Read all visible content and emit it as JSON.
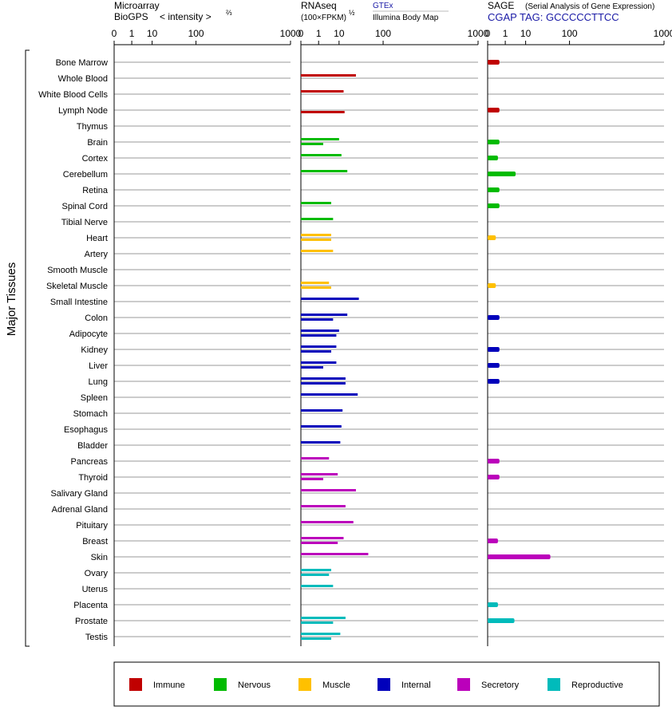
{
  "panels": {
    "microarray": {
      "title_line1": "Microarray",
      "title_line2": "BioGPS",
      "intensity_label": "< intensity >",
      "exponent": "⅔"
    },
    "rnaseq": {
      "title": "RNAseq",
      "unit": "(100×FPKM)",
      "exponent": "½",
      "gtex": "GTEx",
      "illumina": "Illumina Body Map"
    },
    "sage": {
      "title": "SAGE",
      "subtitle": "(Serial Analysis of Gene Expression)",
      "tag": "CGAP TAG: GCCCCCTTCC"
    }
  },
  "side_label": "Major Tissues",
  "colors": {
    "Immune": "#c00000",
    "Nervous": "#00bb00",
    "Muscle": "#ffc000",
    "Internal": "#0000bb",
    "Secretory": "#bb00bb",
    "Reproductive": "#00bbbb"
  },
  "chart_data": {
    "type": "bar",
    "orientation": "horizontal",
    "x_ticks": [
      "0",
      "1",
      "10",
      "100",
      "1000"
    ],
    "xlim": [
      0,
      1000
    ],
    "categories": [
      "Bone Marrow",
      "Whole Blood",
      "White Blood Cells",
      "Lymph Node",
      "Thymus",
      "Brain",
      "Cortex",
      "Cerebellum",
      "Retina",
      "Spinal Cord",
      "Tibial Nerve",
      "Heart",
      "Artery",
      "Smooth Muscle",
      "Skeletal Muscle",
      "Small Intestine",
      "Colon",
      "Adipocyte",
      "Kidney",
      "Liver",
      "Lung",
      "Spleen",
      "Stomach",
      "Esophagus",
      "Bladder",
      "Pancreas",
      "Thyroid",
      "Salivary Gland",
      "Adrenal Gland",
      "Pituitary",
      "Breast",
      "Skin",
      "Ovary",
      "Uterus",
      "Placenta",
      "Prostate",
      "Testis"
    ],
    "groups": [
      "Immune",
      "Immune",
      "Immune",
      "Immune",
      "Immune",
      "Nervous",
      "Nervous",
      "Nervous",
      "Nervous",
      "Nervous",
      "Nervous",
      "Muscle",
      "Muscle",
      "Muscle",
      "Muscle",
      "Internal",
      "Internal",
      "Internal",
      "Internal",
      "Internal",
      "Internal",
      "Internal",
      "Internal",
      "Internal",
      "Internal",
      "Secretory",
      "Secretory",
      "Secretory",
      "Secretory",
      "Secretory",
      "Secretory",
      "Secretory",
      "Reproductive",
      "Reproductive",
      "Reproductive",
      "Reproductive",
      "Reproductive"
    ],
    "series": [
      {
        "name": "GTEx",
        "panel": "RNAseq",
        "values": [
          null,
          30,
          14,
          null,
          null,
          10,
          12,
          18,
          null,
          5,
          6,
          5,
          6,
          null,
          4,
          35,
          18,
          10,
          8,
          8,
          16,
          33,
          13,
          12,
          11,
          4,
          9,
          30,
          16,
          26,
          14,
          55,
          5,
          6,
          null,
          16,
          11
        ]
      },
      {
        "name": "Illumina Body Map",
        "panel": "RNAseq",
        "values": [
          null,
          null,
          null,
          15,
          null,
          2,
          null,
          null,
          null,
          null,
          null,
          5,
          null,
          null,
          5,
          null,
          6,
          8,
          5,
          2,
          16,
          null,
          null,
          null,
          null,
          null,
          2,
          null,
          null,
          null,
          9,
          null,
          4,
          null,
          null,
          6,
          5
        ]
      },
      {
        "name": "SAGE",
        "panel": "SAGE",
        "values": [
          0.3,
          null,
          null,
          0.3,
          null,
          0.3,
          0.2,
          4,
          0.3,
          0.3,
          null,
          0.1,
          null,
          null,
          0.1,
          null,
          0.3,
          null,
          0.3,
          0.3,
          0.3,
          null,
          null,
          null,
          null,
          0.3,
          0.3,
          null,
          null,
          null,
          0.2,
          45,
          null,
          null,
          0.2,
          3.5,
          null
        ]
      }
    ],
    "legend": [
      "Immune",
      "Nervous",
      "Muscle",
      "Internal",
      "Secretory",
      "Reproductive"
    ],
    "legend_position": "bottom"
  }
}
